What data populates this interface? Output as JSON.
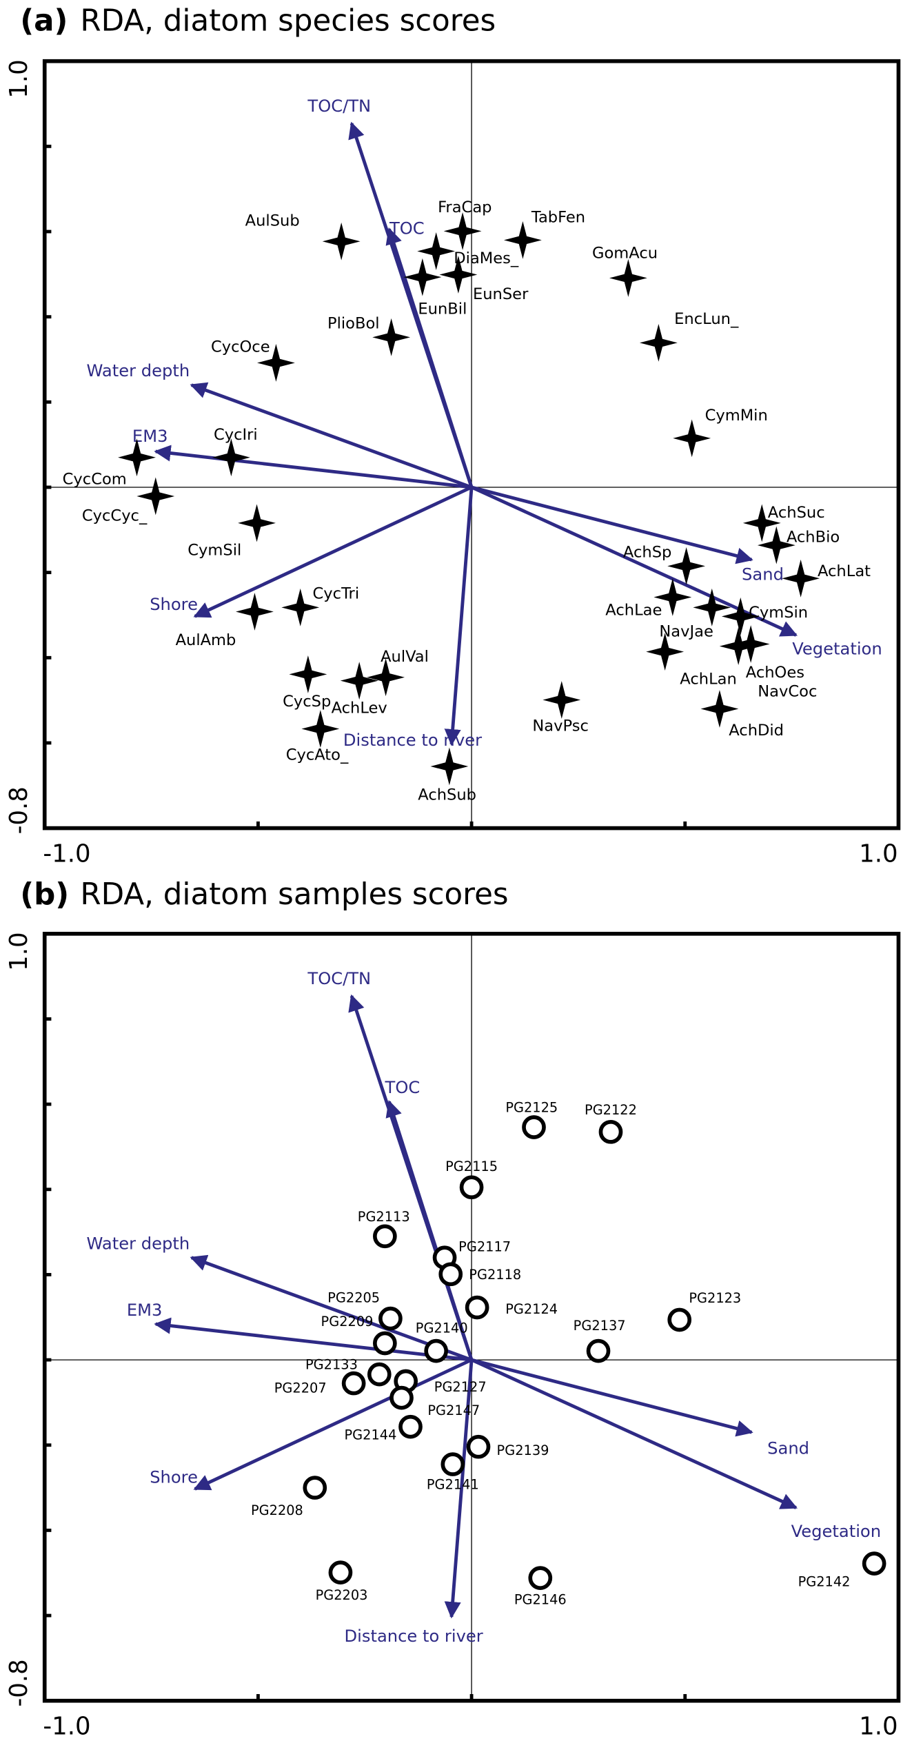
{
  "chart_data": [
    {
      "type": "biplot",
      "panel_label": "(a)",
      "title": "RDA, diatom species scores",
      "xlim": [
        -1,
        1
      ],
      "ylim": [
        -0.8,
        1
      ],
      "xticks": [
        {
          "value": -1,
          "label": "-1.0"
        },
        {
          "value": 1,
          "label": "1.0"
        }
      ],
      "yticks": [
        -0.8,
        {
          "value": 1,
          "label": "1.0"
        }
      ],
      "xminorticks": [
        -0.5,
        0,
        0.5
      ],
      "yminorticks": [
        -0.6,
        -0.4,
        -0.2,
        0,
        0.2,
        0.4,
        0.6,
        0.8
      ],
      "zero_lines": true,
      "arrows": {
        "color": "#2e2a85",
        "names": [
          "TOC/TN",
          "TOC",
          "Water depth",
          "EM3",
          "Shore",
          "Distance to river",
          "Sand",
          "Vegetation"
        ],
        "x": [
          -0.281,
          -0.193,
          -0.656,
          -0.74,
          -0.648,
          -0.047,
          0.656,
          0.76
        ],
        "y": [
          0.854,
          0.606,
          0.24,
          0.084,
          -0.303,
          -0.603,
          -0.17,
          -0.347
        ]
      },
      "points": {
        "marker": "star",
        "color": "#000000",
        "names": [
          "AulSub",
          "FraCap",
          "TabFen",
          "DiaMes_",
          "EunBil",
          "EunSer",
          "GomAcu",
          "PlioBol",
          "EncLun_",
          "CycOce",
          "CymMin",
          "CycIri",
          "CycCom",
          "CycCyc_",
          "CymSil",
          "AchSuc",
          "AchBio",
          "AchSp",
          "AchLat",
          "AchLae",
          "CycTri",
          "AulAmb",
          "CymSin",
          "NavJae",
          "AchOes",
          "NavCoc",
          "AchLan",
          "AulVal",
          "AchLev",
          "CycSp",
          "CycAto_",
          "NavPsc",
          "AchDid",
          "AchSub"
        ],
        "x": [
          -0.305,
          -0.021,
          0.12,
          -0.083,
          -0.115,
          -0.031,
          0.367,
          -0.188,
          0.438,
          -0.458,
          0.516,
          -0.563,
          -0.784,
          -0.74,
          -0.503,
          0.68,
          0.714,
          0.503,
          0.771,
          0.471,
          -0.401,
          -0.508,
          0.63,
          0.563,
          0.625,
          0.654,
          0.453,
          -0.201,
          -0.263,
          -0.383,
          -0.354,
          0.211,
          0.581,
          -0.052
        ],
        "y": [
          0.577,
          0.601,
          0.58,
          0.554,
          0.493,
          0.499,
          0.491,
          0.352,
          0.339,
          0.292,
          0.115,
          0.07,
          0.07,
          -0.021,
          -0.084,
          -0.084,
          -0.136,
          -0.185,
          -0.214,
          -0.258,
          -0.282,
          -0.292,
          -0.303,
          -0.282,
          -0.373,
          -0.368,
          -0.386,
          -0.446,
          -0.454,
          -0.439,
          -0.567,
          -0.499,
          -0.52,
          -0.655
        ]
      }
    },
    {
      "type": "biplot",
      "panel_label": "(b)",
      "title": "RDA, diatom samples scores",
      "xlim": [
        -1,
        1
      ],
      "ylim": [
        -0.8,
        1
      ],
      "xticks": [
        {
          "value": -1,
          "label": "-1.0"
        },
        {
          "value": 1,
          "label": "1.0"
        }
      ],
      "yticks": [
        -0.8,
        {
          "value": 1,
          "label": "1.0"
        }
      ],
      "xminorticks": [
        -0.5,
        0,
        0.5
      ],
      "yminorticks": [
        -0.6,
        -0.4,
        -0.2,
        0,
        0.2,
        0.4,
        0.6,
        0.8
      ],
      "zero_lines": true,
      "arrows": {
        "color": "#2e2a85",
        "names": [
          "TOC/TN",
          "TOC",
          "Water depth",
          "EM3",
          "Shore",
          "Distance to river",
          "Sand",
          "Vegetation"
        ],
        "x": [
          -0.281,
          -0.193,
          -0.656,
          -0.74,
          -0.648,
          -0.047,
          0.656,
          0.76
        ],
        "y": [
          0.854,
          0.606,
          0.24,
          0.084,
          -0.303,
          -0.603,
          -0.17,
          -0.347
        ]
      },
      "points": {
        "marker": "circle",
        "color": "#000000",
        "names": [
          "PG2125",
          "PG2122",
          "PG2115",
          "PG2113",
          "PG2117",
          "PG2118",
          "PG2124",
          "PG2123",
          "PG2205",
          "PG2209",
          "PG2140",
          "PG2137",
          "PG2133",
          "PG2127",
          "PG2207",
          "PG2147",
          "PG2144",
          "PG2139",
          "PG2141",
          "PG2208",
          "PG2203",
          "PG2146",
          "PG2142"
        ],
        "x": [
          0.146,
          0.326,
          0,
          -0.203,
          -0.063,
          -0.049,
          0.013,
          0.487,
          -0.19,
          -0.203,
          -0.083,
          0.297,
          -0.216,
          -0.154,
          -0.276,
          -0.164,
          -0.143,
          0.016,
          -0.044,
          -0.367,
          -0.307,
          0.161,
          0.943
        ],
        "y": [
          0.546,
          0.535,
          0.405,
          0.29,
          0.24,
          0.201,
          0.123,
          0.094,
          0.097,
          0.039,
          0.021,
          0.021,
          -0.034,
          -0.05,
          -0.055,
          -0.089,
          -0.157,
          -0.204,
          -0.245,
          -0.3,
          -0.499,
          -0.512,
          -0.478
        ]
      }
    }
  ]
}
